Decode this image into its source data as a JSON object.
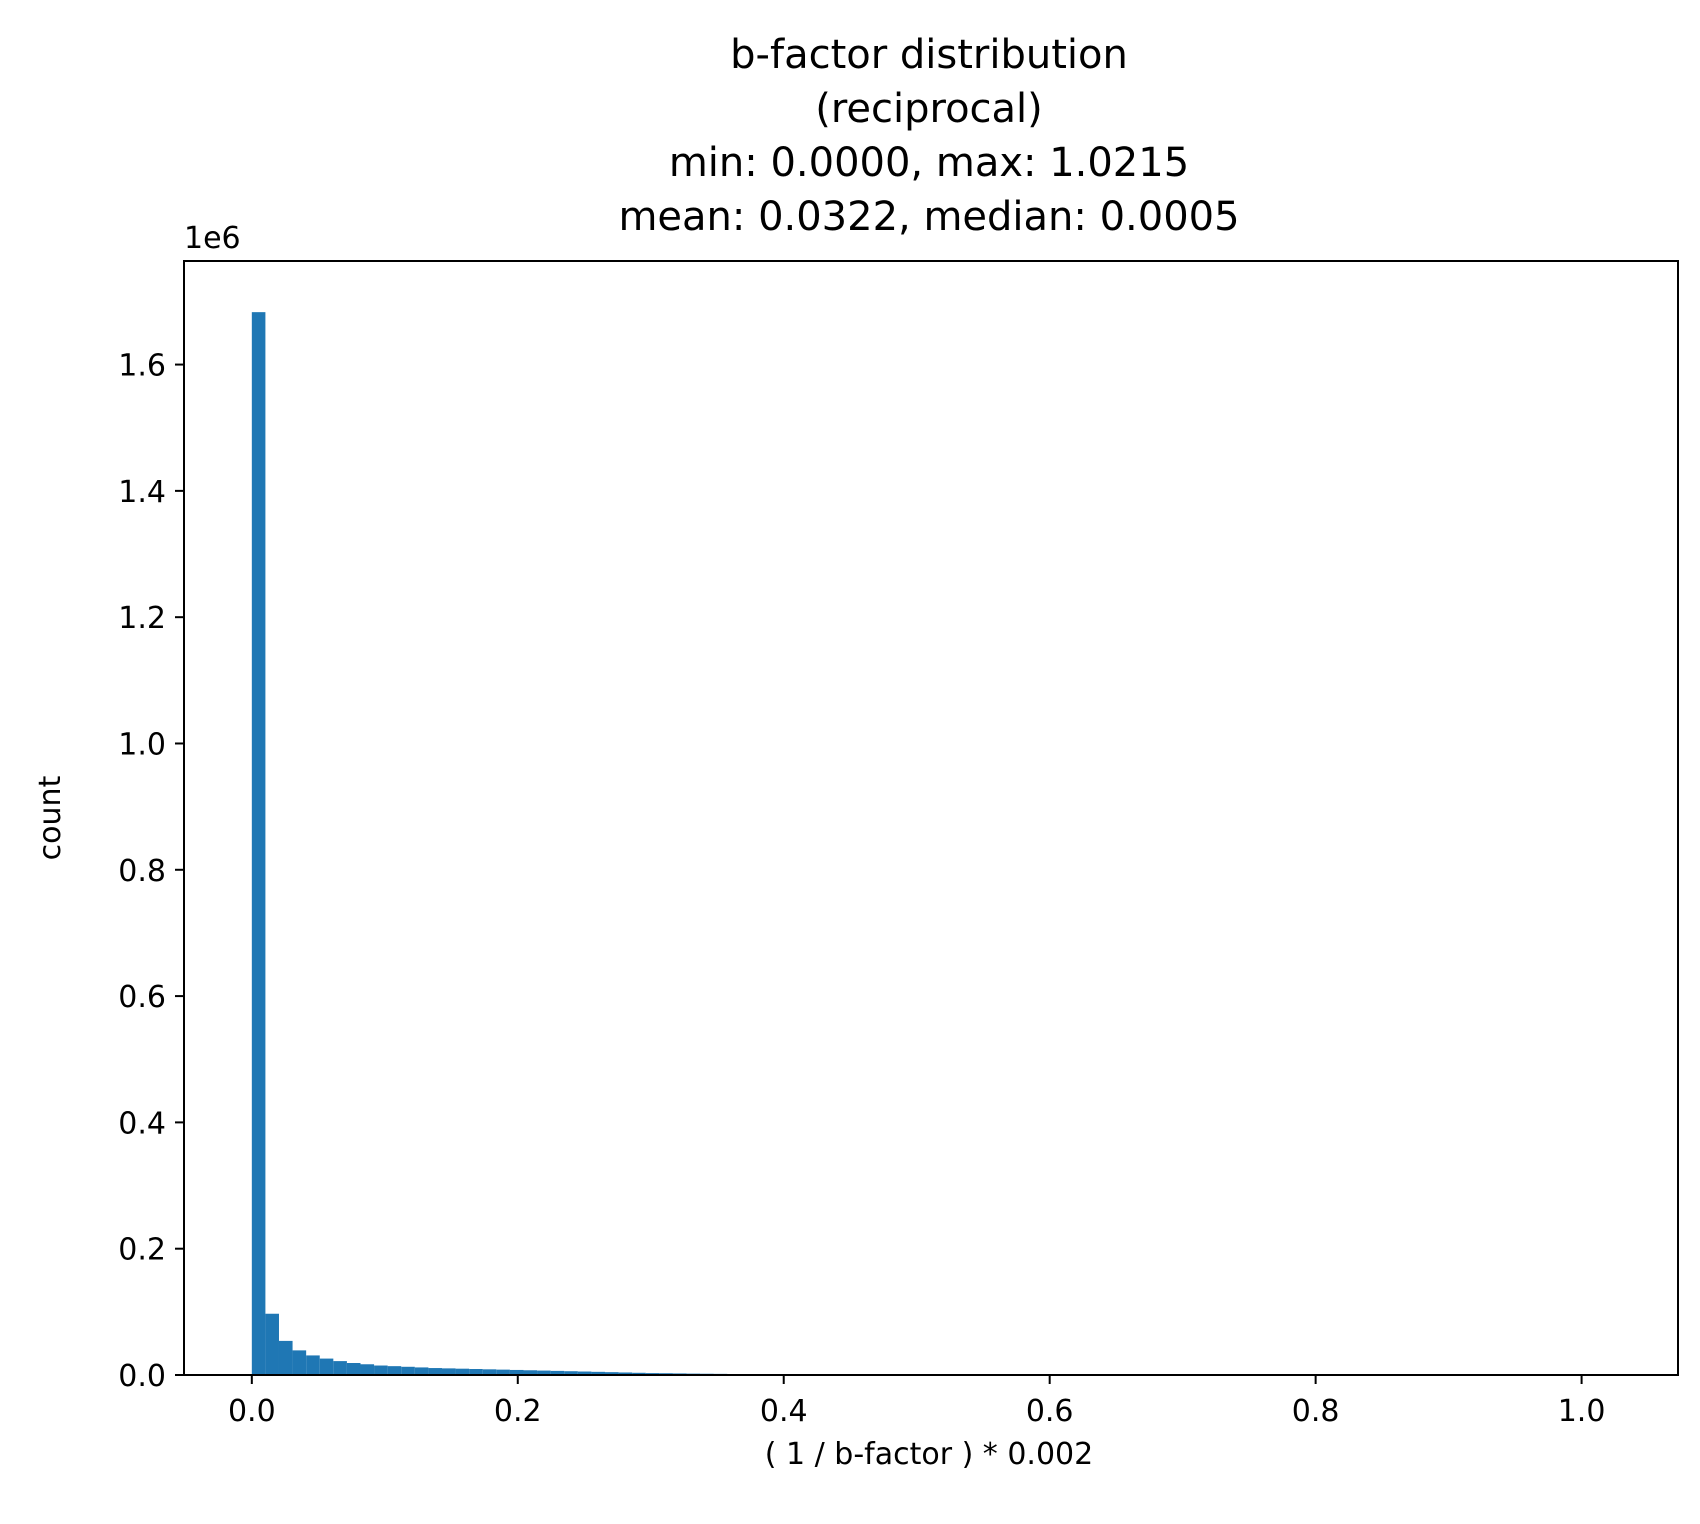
{
  "chart_data": {
    "type": "bar",
    "title_lines": [
      "b-factor distribution",
      "(reciprocal)",
      "min: 0.0000, max: 1.0215",
      "mean: 0.0322, median: 0.0005"
    ],
    "xlabel": "( 1 / b-factor ) * 0.002",
    "ylabel": "count",
    "y_offset_label": "1e6",
    "y_scale": 1000000,
    "xlim": [
      -0.051,
      1.0725
    ],
    "ylim": [
      0,
      1.764
    ],
    "x_ticks": [
      {
        "value": 0.0,
        "label": "0.0"
      },
      {
        "value": 0.2,
        "label": "0.2"
      },
      {
        "value": 0.4,
        "label": "0.4"
      },
      {
        "value": 0.6,
        "label": "0.6"
      },
      {
        "value": 0.8,
        "label": "0.8"
      },
      {
        "value": 1.0,
        "label": "1.0"
      }
    ],
    "y_ticks": [
      {
        "value": 0.0,
        "label": "0.0"
      },
      {
        "value": 0.2,
        "label": "0.2"
      },
      {
        "value": 0.4,
        "label": "0.4"
      },
      {
        "value": 0.6,
        "label": "0.6"
      },
      {
        "value": 0.8,
        "label": "0.8"
      },
      {
        "value": 1.0,
        "label": "1.0"
      },
      {
        "value": 1.2,
        "label": "1.2"
      },
      {
        "value": 1.4,
        "label": "1.4"
      },
      {
        "value": 1.6,
        "label": "1.6"
      }
    ],
    "bin_range": [
      0.0,
      1.0215
    ],
    "bin_count": 100,
    "counts_millions": [
      1.683,
      0.097,
      0.054,
      0.039,
      0.031,
      0.026,
      0.022,
      0.019,
      0.017,
      0.015,
      0.014,
      0.013,
      0.012,
      0.011,
      0.0105,
      0.01,
      0.0095,
      0.009,
      0.0085,
      0.008,
      0.0075,
      0.007,
      0.0065,
      0.006,
      0.0055,
      0.005,
      0.0045,
      0.004,
      0.0035,
      0.003,
      0.0028,
      0.0025,
      0.0022,
      0.002,
      0.0018,
      0.0015,
      0.0012,
      0.001,
      0.0008,
      0.0006,
      0.0005,
      0.0004,
      0.0003,
      0.0003,
      0.0002,
      0.0002,
      0.0002,
      0.0001,
      0.0001,
      0.0001,
      0.0001,
      0.0001,
      0.0001,
      0.0001,
      0.0,
      0.0,
      0.0,
      0.0,
      0.0,
      0.0,
      0.0,
      0.0,
      0.0,
      0.0,
      0.0,
      0.0,
      0.0,
      0.0,
      0.0,
      0.0,
      0.0,
      0.0,
      0.0,
      0.0,
      0.0,
      0.0,
      0.0,
      0.0,
      0.0,
      0.0,
      0.0,
      0.0,
      0.0,
      0.0,
      0.0,
      0.0,
      0.0,
      0.0,
      0.0,
      0.0,
      0.0,
      0.0,
      0.0,
      0.0,
      0.0,
      0.0,
      0.0,
      0.0,
      0.0,
      0.0
    ],
    "bar_color": "#1f77b4",
    "grid": false,
    "legend": "none"
  }
}
